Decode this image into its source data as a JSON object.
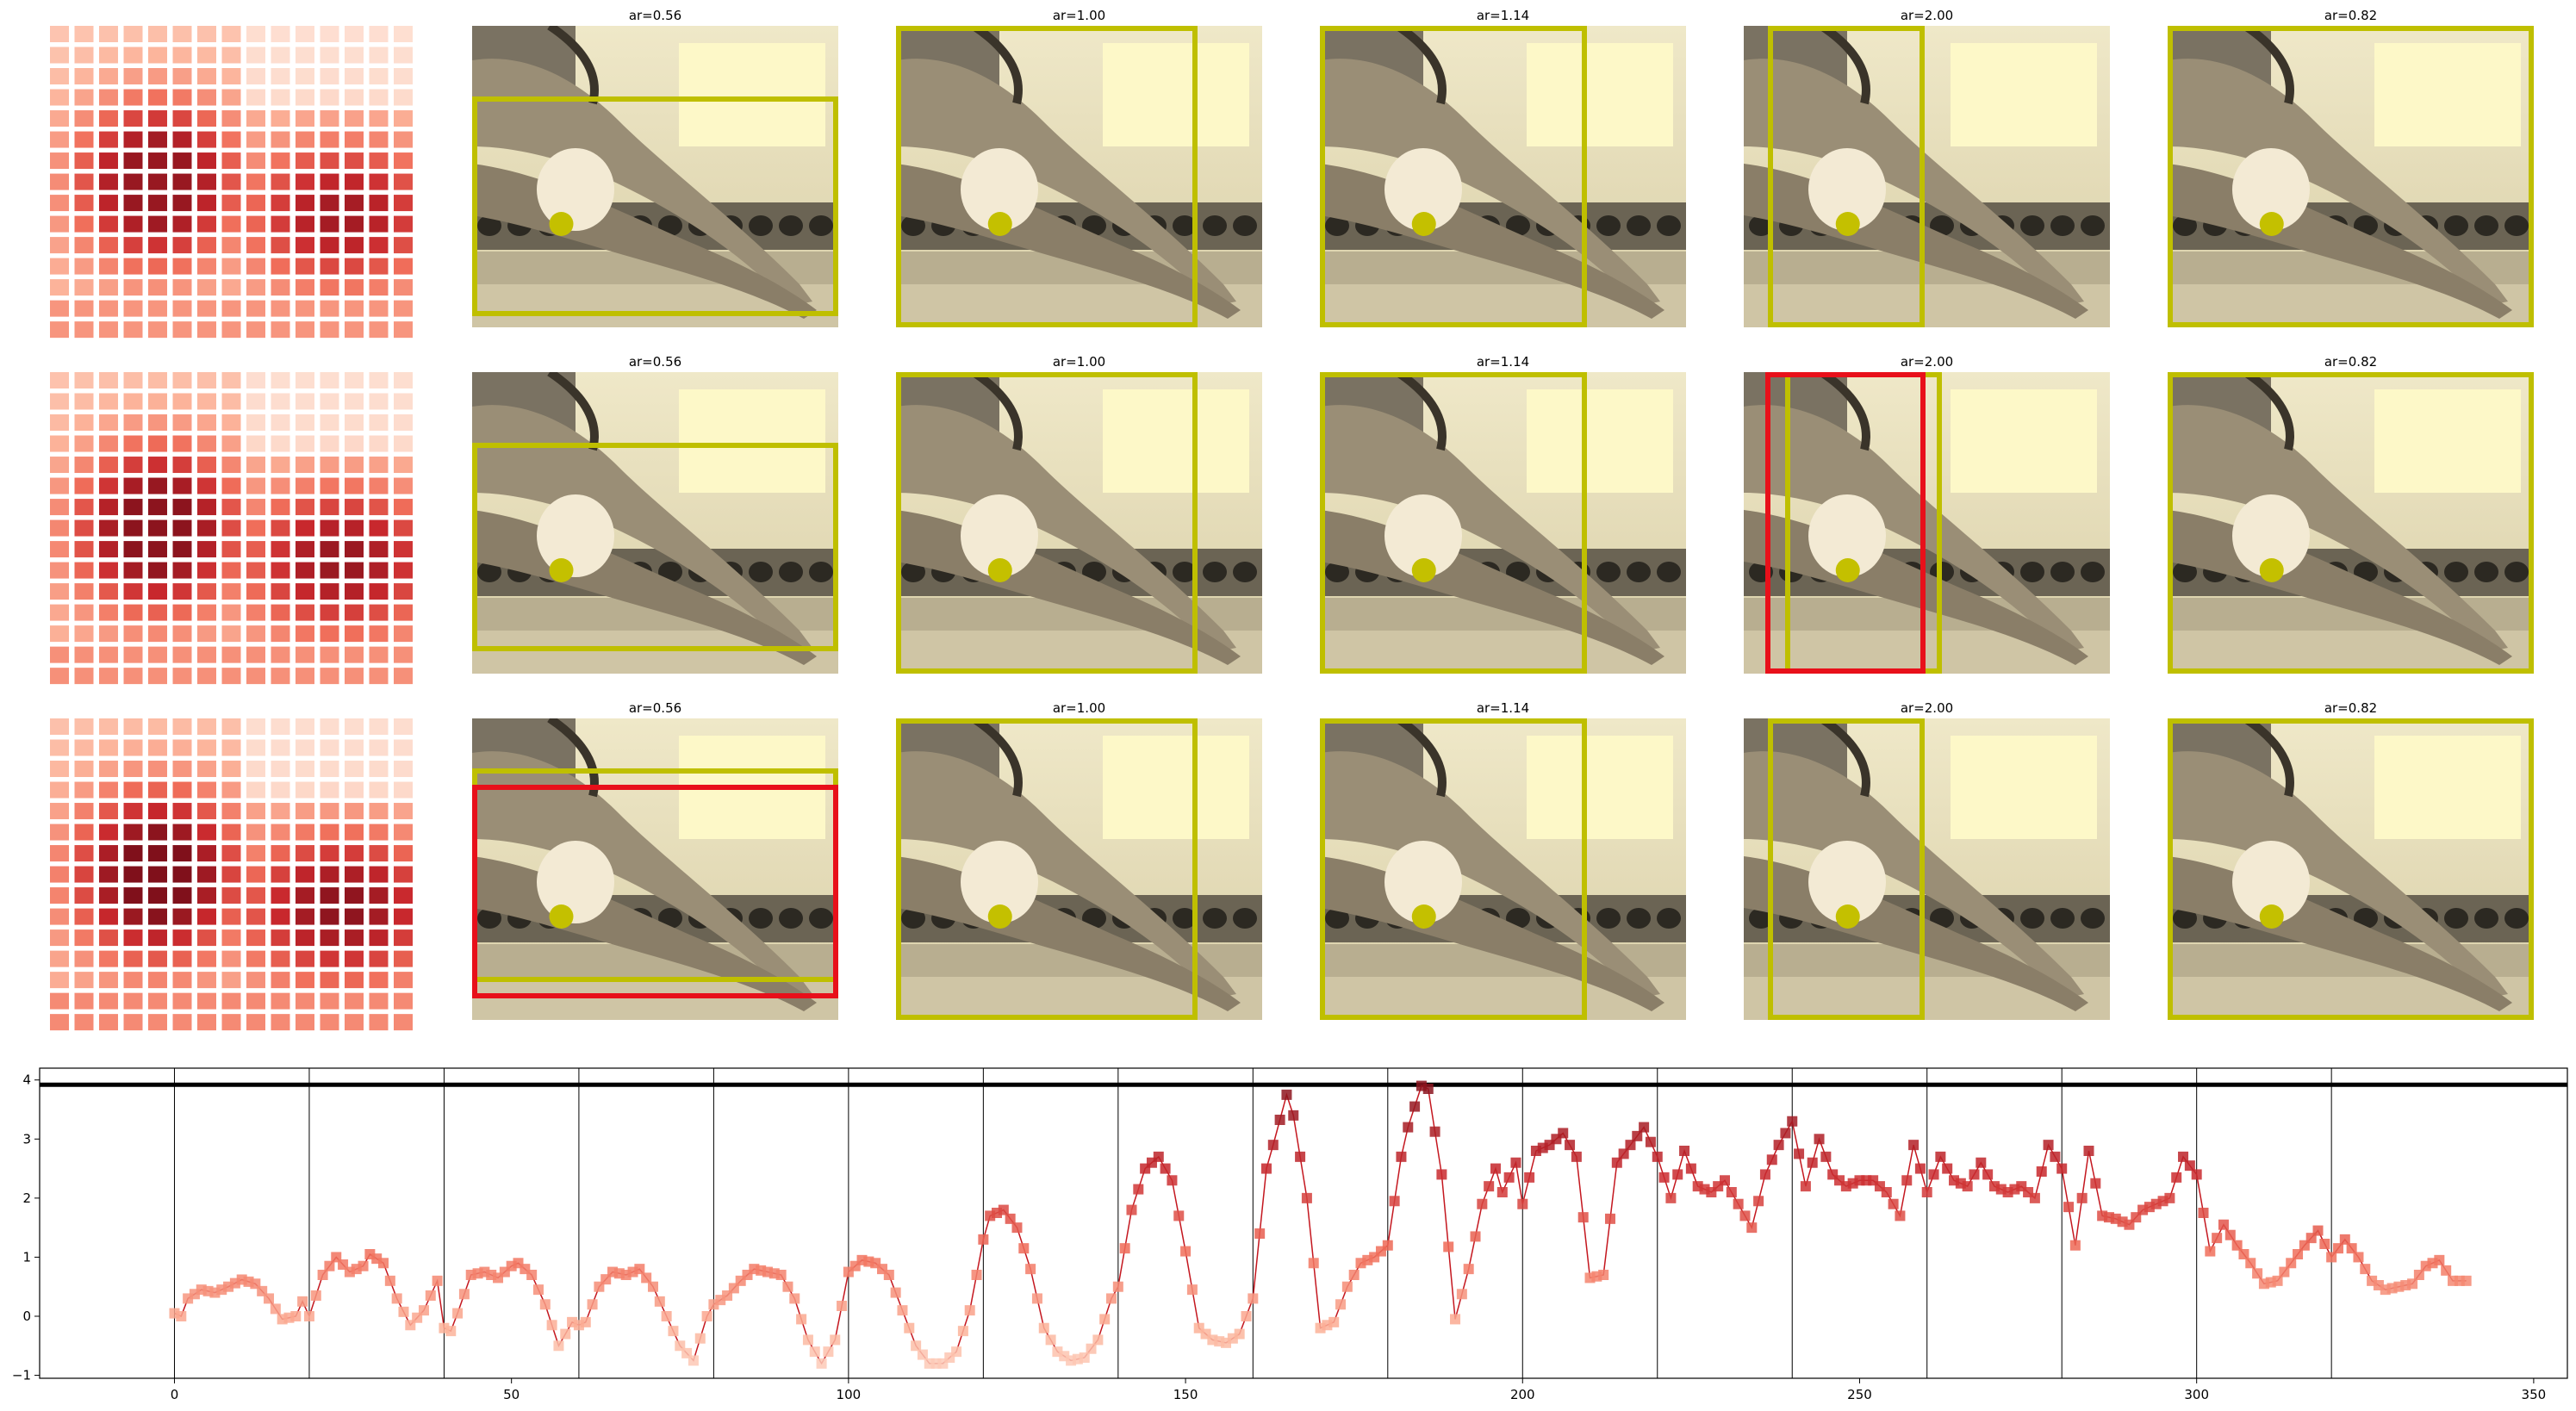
{
  "panel_titles": [
    "ar=0.56",
    "ar=1.00",
    "ar=1.14",
    "ar=2.00",
    "ar=0.82"
  ],
  "colors": {
    "box_yellow": "#bfbf00",
    "box_red": "#e8101a",
    "point_yellow": "#c4c000",
    "line_red": "#c4171f",
    "threshold_black": "#000000",
    "heat_low": "#fee4d8",
    "heat_high": "#a50f15"
  },
  "image_panels": {
    "description_icon": "swimmer-photo-icon",
    "rows": [
      {
        "red_box": "none"
      },
      {
        "red_box": "ar=2.00"
      },
      {
        "red_box": "ar=0.56"
      }
    ]
  },
  "heatmap_grid": {
    "rows": 15,
    "cols": 15
  },
  "chart_data": {
    "type": "line",
    "title": "",
    "xlabel": "",
    "ylabel": "",
    "xlim": [
      -20,
      355
    ],
    "ylim": [
      -1.05,
      4.2
    ],
    "x_ticks": [
      0,
      50,
      100,
      150,
      200,
      250,
      300,
      350
    ],
    "y_ticks": [
      -1,
      0,
      1,
      2,
      3,
      4
    ],
    "vertical_lines": [
      0,
      20,
      40,
      60,
      80,
      100,
      120,
      140,
      160,
      180,
      200,
      220,
      240,
      260,
      280,
      300,
      320
    ],
    "threshold_y": 3.92,
    "series": [
      {
        "values_keyframes": [
          [
            0,
            0.05
          ],
          [
            1,
            0.0
          ],
          [
            2,
            0.3
          ],
          [
            4,
            0.45
          ],
          [
            6,
            0.4
          ],
          [
            8,
            0.5
          ],
          [
            10,
            0.62
          ],
          [
            12,
            0.55
          ],
          [
            14,
            0.3
          ],
          [
            16,
            -0.05
          ],
          [
            18,
            0.0
          ],
          [
            19,
            0.25
          ],
          [
            20,
            0.0
          ],
          [
            22,
            0.7
          ],
          [
            24,
            1.0
          ],
          [
            26,
            0.75
          ],
          [
            28,
            0.85
          ],
          [
            29,
            1.05
          ],
          [
            31,
            0.9
          ],
          [
            33,
            0.3
          ],
          [
            35,
            -0.15
          ],
          [
            37,
            0.1
          ],
          [
            39,
            0.6
          ],
          [
            40,
            -0.2
          ],
          [
            41,
            -0.25
          ],
          [
            42,
            0.05
          ],
          [
            44,
            0.7
          ],
          [
            46,
            0.75
          ],
          [
            48,
            0.65
          ],
          [
            50,
            0.85
          ],
          [
            51,
            0.9
          ],
          [
            53,
            0.7
          ],
          [
            55,
            0.2
          ],
          [
            57,
            -0.5
          ],
          [
            59,
            -0.1
          ],
          [
            60,
            -0.15
          ],
          [
            61,
            -0.1
          ],
          [
            63,
            0.5
          ],
          [
            65,
            0.75
          ],
          [
            67,
            0.7
          ],
          [
            69,
            0.8
          ],
          [
            71,
            0.5
          ],
          [
            73,
            0.0
          ],
          [
            75,
            -0.5
          ],
          [
            77,
            -0.75
          ],
          [
            79,
            0.0
          ],
          [
            80,
            0.2
          ],
          [
            82,
            0.35
          ],
          [
            84,
            0.6
          ],
          [
            86,
            0.8
          ],
          [
            88,
            0.75
          ],
          [
            90,
            0.7
          ],
          [
            92,
            0.3
          ],
          [
            94,
            -0.4
          ],
          [
            96,
            -0.8
          ],
          [
            98,
            -0.4
          ],
          [
            100,
            0.75
          ],
          [
            102,
            0.95
          ],
          [
            104,
            0.9
          ],
          [
            106,
            0.7
          ],
          [
            108,
            0.1
          ],
          [
            110,
            -0.5
          ],
          [
            112,
            -0.8
          ],
          [
            114,
            -0.8
          ],
          [
            116,
            -0.6
          ],
          [
            118,
            0.1
          ],
          [
            120,
            1.3
          ],
          [
            121,
            1.7
          ],
          [
            123,
            1.8
          ],
          [
            125,
            1.5
          ],
          [
            127,
            0.8
          ],
          [
            129,
            -0.2
          ],
          [
            131,
            -0.6
          ],
          [
            133,
            -0.75
          ],
          [
            135,
            -0.7
          ],
          [
            137,
            -0.4
          ],
          [
            139,
            0.3
          ],
          [
            140,
            0.5
          ],
          [
            142,
            1.8
          ],
          [
            144,
            2.5
          ],
          [
            146,
            2.7
          ],
          [
            148,
            2.3
          ],
          [
            150,
            1.1
          ],
          [
            152,
            -0.2
          ],
          [
            154,
            -0.4
          ],
          [
            156,
            -0.45
          ],
          [
            158,
            -0.3
          ],
          [
            160,
            0.3
          ],
          [
            162,
            2.5
          ],
          [
            163,
            2.9
          ],
          [
            165,
            3.75
          ],
          [
            166,
            3.4
          ],
          [
            168,
            2.0
          ],
          [
            170,
            -0.2
          ],
          [
            172,
            -0.1
          ],
          [
            174,
            0.5
          ],
          [
            176,
            0.9
          ],
          [
            178,
            1.0
          ],
          [
            180,
            1.2
          ],
          [
            182,
            2.7
          ],
          [
            183,
            3.2
          ],
          [
            185,
            3.9
          ],
          [
            186,
            3.85
          ],
          [
            188,
            2.4
          ],
          [
            190,
            -0.05
          ],
          [
            192,
            0.8
          ],
          [
            194,
            1.9
          ],
          [
            196,
            2.5
          ],
          [
            197,
            2.1
          ],
          [
            199,
            2.6
          ],
          [
            200,
            1.9
          ],
          [
            202,
            2.8
          ],
          [
            204,
            2.9
          ],
          [
            206,
            3.1
          ],
          [
            208,
            2.7
          ],
          [
            210,
            0.65
          ],
          [
            212,
            0.7
          ],
          [
            214,
            2.6
          ],
          [
            216,
            2.9
          ],
          [
            218,
            3.2
          ],
          [
            220,
            2.7
          ],
          [
            222,
            2.0
          ],
          [
            224,
            2.8
          ],
          [
            226,
            2.2
          ],
          [
            228,
            2.1
          ],
          [
            230,
            2.3
          ],
          [
            232,
            1.9
          ],
          [
            234,
            1.5
          ],
          [
            236,
            2.4
          ],
          [
            238,
            2.9
          ],
          [
            240,
            3.3
          ],
          [
            242,
            2.2
          ],
          [
            244,
            3.0
          ],
          [
            246,
            2.4
          ],
          [
            248,
            2.2
          ],
          [
            250,
            2.3
          ],
          [
            252,
            2.3
          ],
          [
            254,
            2.1
          ],
          [
            256,
            1.7
          ],
          [
            258,
            2.9
          ],
          [
            260,
            2.1
          ],
          [
            262,
            2.7
          ],
          [
            264,
            2.3
          ],
          [
            266,
            2.2
          ],
          [
            268,
            2.6
          ],
          [
            270,
            2.2
          ],
          [
            272,
            2.1
          ],
          [
            274,
            2.2
          ],
          [
            276,
            2.0
          ],
          [
            278,
            2.9
          ],
          [
            280,
            2.5
          ],
          [
            282,
            1.2
          ],
          [
            284,
            2.8
          ],
          [
            286,
            1.7
          ],
          [
            288,
            1.65
          ],
          [
            290,
            1.55
          ],
          [
            292,
            1.8
          ],
          [
            294,
            1.9
          ],
          [
            296,
            2.0
          ],
          [
            298,
            2.7
          ],
          [
            300,
            2.4
          ],
          [
            302,
            1.1
          ],
          [
            304,
            1.55
          ],
          [
            306,
            1.2
          ],
          [
            308,
            0.9
          ],
          [
            310,
            0.55
          ],
          [
            312,
            0.6
          ],
          [
            314,
            0.9
          ],
          [
            316,
            1.2
          ],
          [
            318,
            1.45
          ],
          [
            320,
            1.0
          ],
          [
            322,
            1.3
          ],
          [
            324,
            1.0
          ],
          [
            326,
            0.6
          ],
          [
            328,
            0.45
          ],
          [
            330,
            0.5
          ],
          [
            332,
            0.55
          ],
          [
            334,
            0.85
          ],
          [
            336,
            0.95
          ],
          [
            338,
            0.6
          ],
          [
            340,
            0.6
          ]
        ]
      }
    ]
  }
}
